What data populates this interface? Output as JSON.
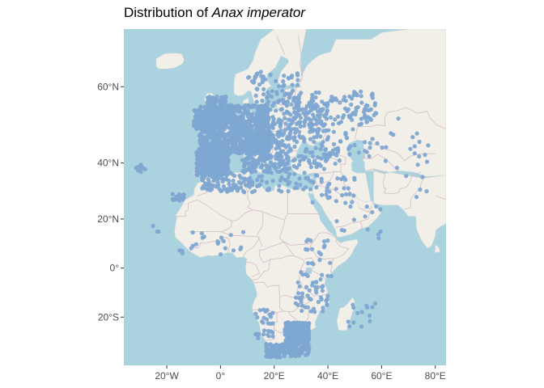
{
  "title": {
    "prefix": "Distribution of ",
    "species": "Anax imperator"
  },
  "map": {
    "lon_range": [
      -36,
      84
    ],
    "lat_range": [
      -37.5,
      70
    ],
    "ocean_color": "#aad3df",
    "land_color": "#f2efe9",
    "border_color": "#d4bcc4",
    "point_color": "#7ea6d2",
    "lon_ticks": [
      {
        "value": -20,
        "label": "20°W"
      },
      {
        "value": 0,
        "label": "0°"
      },
      {
        "value": 20,
        "label": "20°E"
      },
      {
        "value": 40,
        "label": "40°E"
      },
      {
        "value": 60,
        "label": "60°E"
      },
      {
        "value": 80,
        "label": "80°E"
      }
    ],
    "lat_ticks": [
      {
        "value": 60,
        "label": "60°N"
      },
      {
        "value": 40,
        "label": "40°N"
      },
      {
        "value": 20,
        "label": "20°N"
      },
      {
        "value": 0,
        "label": "0°"
      },
      {
        "value": -20,
        "label": "20°S"
      }
    ],
    "occurrence_clusters": [
      {
        "lon": [
          -8,
          18
        ],
        "lat": [
          43,
          56
        ],
        "n": 900
      },
      {
        "lon": [
          -9,
          3
        ],
        "lat": [
          36,
          43.5
        ],
        "n": 320
      },
      {
        "lon": [
          -10,
          -6
        ],
        "lat": [
          50,
          55
        ],
        "n": 60
      },
      {
        "lon": [
          -5,
          2
        ],
        "lat": [
          50,
          58
        ],
        "n": 120
      },
      {
        "lon": [
          8,
          25
        ],
        "lat": [
          37,
          47
        ],
        "n": 160
      },
      {
        "lon": [
          14,
          40
        ],
        "lat": [
          47,
          57
        ],
        "n": 170
      },
      {
        "lon": [
          25,
          58
        ],
        "lat": [
          51,
          59
        ],
        "n": 130
      },
      {
        "lon": [
          10,
          30
        ],
        "lat": [
          56,
          63
        ],
        "n": 70
      },
      {
        "lon": [
          20,
          45
        ],
        "lat": [
          38,
          47
        ],
        "n": 90
      },
      {
        "lon": [
          38,
          60
        ],
        "lat": [
          42,
          50
        ],
        "n": 25
      },
      {
        "lon": [
          -7,
          10
        ],
        "lat": [
          30,
          37
        ],
        "n": 90
      },
      {
        "lon": [
          10,
          32
        ],
        "lat": [
          30,
          37
        ],
        "n": 45
      },
      {
        "lon": [
          32,
          50
        ],
        "lat": [
          26,
          36
        ],
        "n": 40
      },
      {
        "lon": [
          24,
          33
        ],
        "lat": [
          -34.5,
          -22
        ],
        "n": 380
      },
      {
        "lon": [
          17,
          24
        ],
        "lat": [
          -34.8,
          -30
        ],
        "n": 110
      },
      {
        "lon": [
          13,
          20
        ],
        "lat": [
          -29,
          -17
        ],
        "n": 30
      },
      {
        "lon": [
          28,
          40
        ],
        "lat": [
          -18,
          -5
        ],
        "n": 45
      },
      {
        "lon": [
          30,
          42
        ],
        "lat": [
          -5,
          12
        ],
        "n": 25
      },
      {
        "lon": [
          -17,
          10
        ],
        "lat": [
          5,
          15
        ],
        "n": 22
      },
      {
        "lon": [
          45,
          58
        ],
        "lat": [
          -25,
          -12
        ],
        "n": 14
      },
      {
        "lon": [
          -18,
          -13
        ],
        "lat": [
          27,
          29.5
        ],
        "n": 25
      },
      {
        "lon": [
          -32,
          -26
        ],
        "lat": [
          37,
          40
        ],
        "n": 9
      },
      {
        "lon": [
          -26,
          -23
        ],
        "lat": [
          14.5,
          17.5
        ],
        "n": 3
      },
      {
        "lon": [
          42,
          60
        ],
        "lat": [
          12,
          26
        ],
        "n": 14
      },
      {
        "lon": [
          60,
          78
        ],
        "lat": [
          38,
          56
        ],
        "n": 18
      },
      {
        "lon": [
          66,
          78
        ],
        "lat": [
          28,
          36
        ],
        "n": 5
      }
    ]
  }
}
